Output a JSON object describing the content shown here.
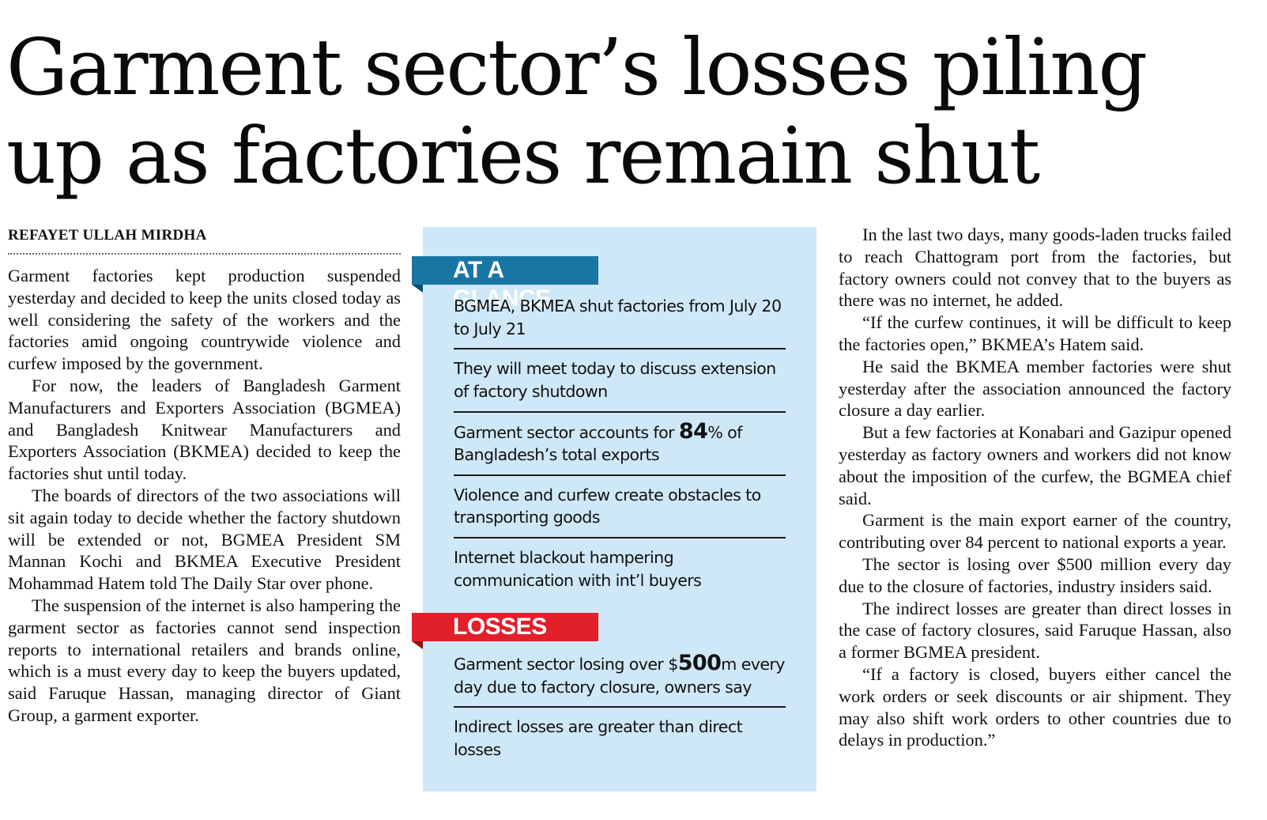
{
  "headline": {
    "line1": "Garment sector’s losses piling",
    "line2": "up as factories remain shut"
  },
  "byline": "REFAYET ULLAH MIRDHA",
  "left_column": [
    "Garment factories kept production suspended yesterday and decided to keep the units closed today as well considering the safety of the workers and the factories amid ongoing countrywide violence and curfew imposed by the government.",
    "For now, the leaders of Bangladesh Garment Manufacturers and Exporters Association (BGMEA) and Bangladesh Knitwear Manufacturers and Exporters Association (BKMEA) decided to keep the factories shut until today.",
    "The boards of directors of the two associations will sit again today to decide whether the factory shutdown will be extended or not, BGMEA President SM Mannan Kochi and BKMEA Executive President Mohammad Hatem told The Daily Star over phone.",
    "The suspension of the internet is also hampering the garment sector as factories cannot send inspection reports to international retailers and brands online, which is a must every day to keep the buyers updated, said Faruque Hassan, managing director of Giant Group, a garment exporter."
  ],
  "right_column": [
    "In the last two days, many goods-laden trucks failed to reach Chattogram port from the factories, but factory owners could not convey that to the buyers as there was no internet, he added.",
    "“If the curfew continues, it will be difficult to keep the factories open,” BKMEA’s Hatem said.",
    "He said the BKMEA member factories were shut yesterday after the association announced the factory closure a day earlier.",
    "But a few factories at Konabari and Gazipur opened yesterday as factory owners and workers did not know about the imposition of the curfew, the BGMEA chief said.",
    "Garment is the main export earner of the country, contributing over 84 percent to national exports a year.",
    "The sector is losing over $500 million every day due to the closure of factories, industry insiders said.",
    "The indirect losses are greater than direct losses in the case of factory closures, said Faruque Hassan, also a former BGMEA president.",
    "“If a factory is closed, buyers either cancel the work orders or seek discounts or air shipment. They may also shift work orders to other countries due to delays in production.”"
  ],
  "sidebar": {
    "glance_label": "AT A GLANCE",
    "glance_points": {
      "p1": "BGMEA, BKMEA shut factories from July 20 to July 21",
      "p2": "They will meet today to discuss extension of factory shutdown",
      "p3_pre": "Garment sector accounts for ",
      "p3_num": "84",
      "p3_post": "% of Bangladesh’s total exports",
      "p4": "Violence and curfew create obstacles to transporting goods",
      "p5": "Internet blackout hampering communication with int’l buyers"
    },
    "losses_label": "LOSSES",
    "losses_points": {
      "p1_pre": "Garment sector losing over $",
      "p1_num": "500",
      "p1_post": "m every day due to factory closure, owners say",
      "p2": "Indirect losses are greater than direct losses"
    }
  },
  "colors": {
    "box_bg": "#cfe8f8",
    "glance_tag": "#1976a3",
    "losses_tag": "#e2202a"
  }
}
